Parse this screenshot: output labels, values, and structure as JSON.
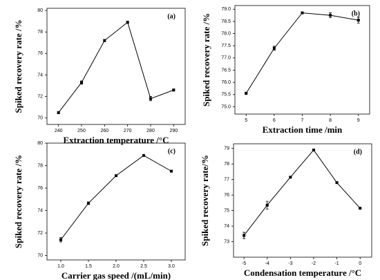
{
  "chart_data": [
    {
      "type": "line",
      "label": "(a)",
      "x_label": "Extraction temperature /°C",
      "y_label": "Spiked recovery rate /%",
      "x": [
        240,
        250,
        260,
        270,
        280,
        290
      ],
      "series": [
        {
          "color": "#000000",
          "values": [
            70.5,
            73.3,
            77.2,
            78.9,
            71.8,
            72.6
          ],
          "errors": [
            0.1,
            0.15,
            0.1,
            0.1,
            0.2,
            0.1
          ]
        }
      ],
      "xlim": [
        235,
        295
      ],
      "xticks": [
        240,
        250,
        260,
        270,
        280,
        290
      ],
      "ylim": [
        69.4,
        80.2
      ],
      "yticks": [
        70,
        72,
        74,
        76,
        78,
        80
      ]
    },
    {
      "type": "line",
      "label": "(b)",
      "x_label": "Extraction time /min",
      "y_label": "Spiked recovery rate /%",
      "x": [
        5,
        6,
        7,
        8,
        9
      ],
      "series": [
        {
          "color": "#000000",
          "values": [
            75.55,
            77.4,
            78.85,
            78.75,
            78.55
          ],
          "errors": [
            0.05,
            0.08,
            0.03,
            0.1,
            0.12
          ]
        }
      ],
      "xlim": [
        4.6,
        9.4
      ],
      "xticks": [
        5,
        6,
        7,
        8,
        9
      ],
      "ylim": [
        74.7,
        79.15
      ],
      "yticks": [
        {
          "value": 75,
          "label": "75.0"
        },
        75.5,
        {
          "value": 76,
          "label": "76.0"
        },
        76.5,
        {
          "value": 77,
          "label": "77.0"
        },
        77.5,
        {
          "value": 78,
          "label": "78.0"
        },
        78.5,
        {
          "value": 79,
          "label": "79.0"
        }
      ]
    },
    {
      "type": "line",
      "label": "(c)",
      "x_label": "Carrier gas speed /(mL/min)",
      "y_label": "Spiked recovery rate /%",
      "x": [
        1.0,
        1.5,
        2.0,
        2.5,
        3.0
      ],
      "series": [
        {
          "color": "#000000",
          "values": [
            71.4,
            74.65,
            77.1,
            78.9,
            77.5
          ],
          "errors": [
            0.2,
            0.12,
            0.08,
            0.05,
            0.05
          ]
        }
      ],
      "xlim": [
        0.75,
        3.25
      ],
      "xticks": [
        {
          "value": 1,
          "label": "1.0"
        },
        1.5,
        {
          "value": 2,
          "label": "2.0"
        },
        2.5,
        {
          "value": 3,
          "label": "3.0"
        }
      ],
      "ylim": [
        69.6,
        80
      ],
      "yticks": [
        70,
        72,
        74,
        76,
        78,
        80
      ]
    },
    {
      "type": "line",
      "label": "(d)",
      "x_label": "Condensation temperature /°C",
      "y_label": "Spiked recovery rate/%",
      "x": [
        -5,
        -4,
        -3,
        -2,
        -1,
        0
      ],
      "series": [
        {
          "color": "#000000",
          "values": [
            73.4,
            75.35,
            77.15,
            78.9,
            76.8,
            75.15
          ],
          "errors": [
            0.2,
            0.25,
            0.05,
            0.05,
            0.05,
            0.05
          ]
        }
      ],
      "xlim": [
        -5.45,
        0.5
      ],
      "xticks": [
        -5,
        -4,
        -3,
        -2,
        -1,
        0
      ],
      "ylim": [
        72,
        79.3
      ],
      "yticks": [
        73,
        74,
        75,
        76,
        77,
        78,
        79
      ]
    }
  ]
}
